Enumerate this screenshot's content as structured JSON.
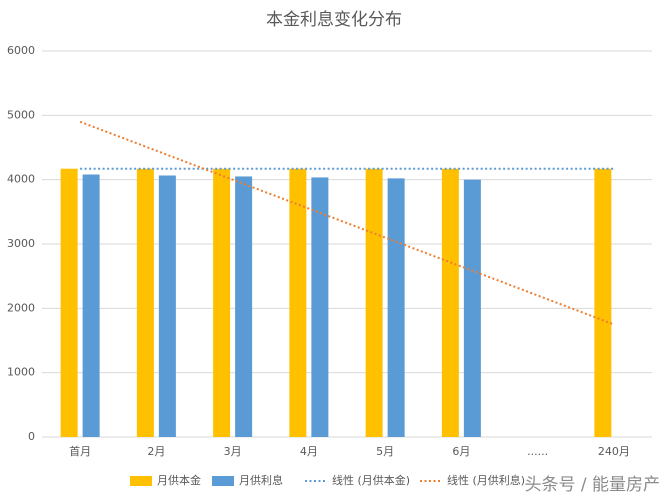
{
  "chart_data": {
    "type": "bar",
    "title": "本金利息变化分布",
    "categories": [
      "首月",
      "2月",
      "3月",
      "4月",
      "5月",
      "6月",
      "......",
      "240月"
    ],
    "series": [
      {
        "name": "月供本金",
        "type": "bar",
        "color": "#ffc000",
        "values": [
          4170,
          4170,
          4170,
          4170,
          4170,
          4170,
          null,
          4170
        ]
      },
      {
        "name": "月供利息",
        "type": "bar",
        "color": "#5b9bd5",
        "values": [
          4080,
          4065,
          4050,
          4035,
          4020,
          4000,
          null,
          null
        ]
      },
      {
        "name": "线性 (月供本金)",
        "type": "line",
        "dash": "dotted",
        "color": "#5b9bd5",
        "values": [
          4170,
          4170,
          4170,
          4170,
          4170,
          4170,
          4170,
          4170
        ]
      },
      {
        "name": "线性 (月供利息)",
        "type": "line",
        "dash": "dotted",
        "color": "#ed7d31",
        "values": [
          4900,
          4450,
          4000,
          3550,
          3100,
          2650,
          2200,
          1750
        ]
      }
    ],
    "ylim": [
      0,
      6000
    ],
    "yticks": [
      0,
      1000,
      2000,
      3000,
      4000,
      5000,
      6000
    ],
    "grid": true,
    "legend": "bottom",
    "watermark": "头条号 / 能量房产"
  }
}
